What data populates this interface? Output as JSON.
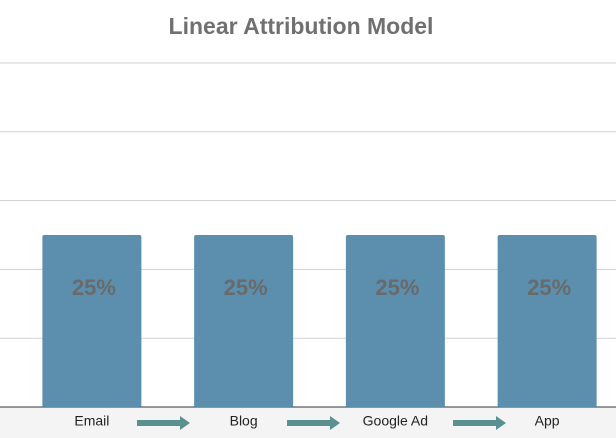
{
  "chart_data": {
    "type": "bar",
    "title": "Linear Attribution Model",
    "categories": [
      "Email",
      "Blog",
      "Google Ad",
      "App"
    ],
    "values": [
      25,
      25,
      25,
      25
    ],
    "value_labels": [
      "25%",
      "25%",
      "25%",
      "25%"
    ],
    "color": "#5b8fad",
    "ylim": [
      0,
      50
    ],
    "yticks": [
      0,
      10,
      20,
      30,
      40,
      50
    ],
    "grid": true
  }
}
